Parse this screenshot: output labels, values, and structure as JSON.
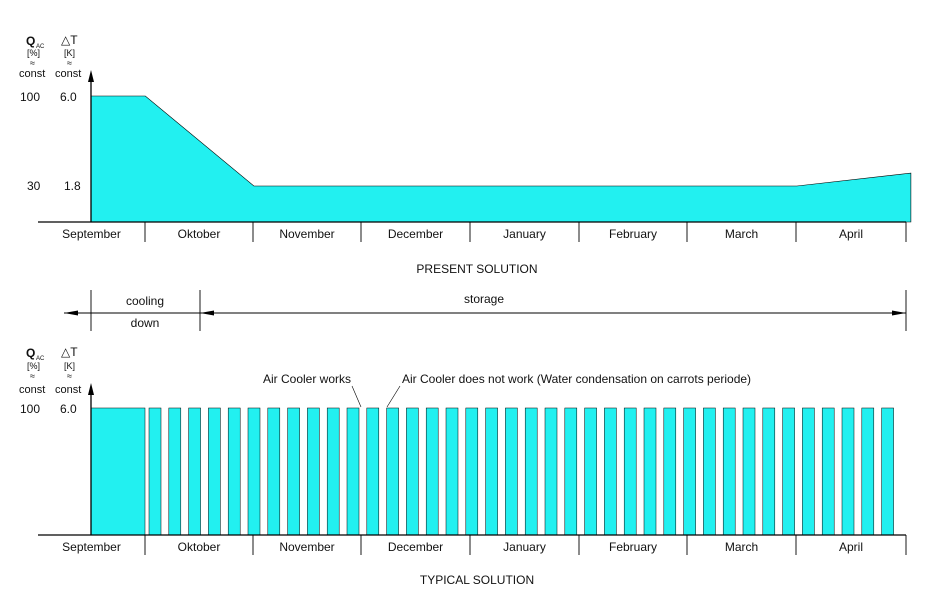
{
  "months": [
    "September",
    "Oktober",
    "November",
    "December",
    "January",
    "February",
    "March",
    "April"
  ],
  "present": {
    "title": "PRESENT SOLUTION",
    "y_left_symbol": "Q",
    "y_left_sub": "AC",
    "y_left_unit": "[%]",
    "y_left_approx": "≈",
    "y_left_const": "const",
    "y_right_symbol": "△T",
    "y_right_unit": "[K]",
    "y_right_approx": "≈",
    "y_right_const": "const",
    "tick_high_left": "100",
    "tick_high_right": "6.0",
    "tick_low_left": "30",
    "tick_low_right": "1.8"
  },
  "phases": {
    "cooling_line1": "cooling",
    "cooling_line2": "down",
    "storage": "storage"
  },
  "typical": {
    "title": "TYPICAL SOLUTION",
    "y_left_symbol": "Q",
    "y_left_sub": "AC",
    "y_left_unit": "[%]",
    "y_left_approx": "≈",
    "y_left_const": "const",
    "y_right_symbol": "△T",
    "y_right_unit": "[K]",
    "y_right_approx": "≈",
    "y_right_const": "const",
    "tick_high_left": "100",
    "tick_high_right": "6.0",
    "annotation_works": "Air Cooler works",
    "annotation_not_work": "Air Cooler does not work  (Water condensation on carrots periode)"
  },
  "colors": {
    "fill": "#22f0f0",
    "stroke": "#000000"
  },
  "chart_data": [
    {
      "type": "area",
      "title": "PRESENT SOLUTION",
      "x_categories": [
        "September",
        "Oktober",
        "November",
        "December",
        "January",
        "February",
        "March",
        "April"
      ],
      "ylabel_left": "Q AC [%] ≈ const",
      "ylabel_right": "△T [K] ≈ const",
      "y_ticks_left": [
        30,
        100
      ],
      "y_ticks_right": [
        1.8,
        6.0
      ],
      "series": [
        {
          "points_month_index_vs_percent": [
            [
              0,
              100
            ],
            [
              0.5,
              100
            ],
            [
              1.5,
              30
            ],
            [
              6.5,
              30
            ],
            [
              7.55,
              40
            ]
          ]
        }
      ]
    },
    {
      "type": "bar",
      "title": "TYPICAL SOLUTION",
      "x_categories": [
        "September",
        "Oktober",
        "November",
        "December",
        "January",
        "February",
        "March",
        "April"
      ],
      "ylabel_left": "Q AC [%] ≈ const",
      "ylabel_right": "△T [K] ≈ const",
      "y_ticks_left": [
        100
      ],
      "y_ticks_right": [
        6.0
      ],
      "on_off_cycles": {
        "continuous_operation_months": [
          "September"
        ],
        "on_level_percent": 100,
        "off_level_percent": 0,
        "pulse_count": 38
      }
    }
  ]
}
